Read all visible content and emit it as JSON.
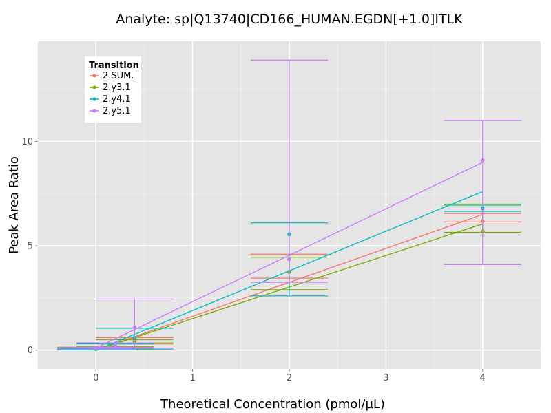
{
  "chart_data": {
    "type": "scatter",
    "title": "Analyte: sp|Q13740|CD166_HUMAN.EGDN[+1.0]ITLK",
    "xlabel": "Theoretical Concentration (pmol/µL)",
    "ylabel": "Peak Area Ratio",
    "xlim": [
      -0.6,
      4.6
    ],
    "ylim": [
      -0.9,
      14.8
    ],
    "x_ticks": [
      0,
      1,
      2,
      3,
      4
    ],
    "x_tick_labels": [
      "0",
      "1",
      "2",
      "3",
      "4"
    ],
    "y_ticks": [
      0,
      5,
      10
    ],
    "y_tick_labels": [
      "0",
      "5",
      "10"
    ],
    "grid": true,
    "legend": {
      "title": "Transition",
      "position": "top-left"
    },
    "series": [
      {
        "name": "2.SUM.",
        "color": "#F8766D",
        "points": [
          {
            "x": 0,
            "y": 0.05,
            "ymin": 0.02,
            "ymax": 0.1
          },
          {
            "x": 0.2,
            "y": 0.1,
            "ymin": 0.05,
            "ymax": 0.15
          },
          {
            "x": 0.4,
            "y": 0.45,
            "ymin": 0.3,
            "ymax": 0.6
          },
          {
            "x": 2,
            "y": 3.75,
            "ymin": 3.45,
            "ymax": 4.6
          },
          {
            "x": 4,
            "y": 6.2,
            "ymin": 6.15,
            "ymax": 6.55
          }
        ],
        "fit": {
          "x": [
            0,
            4
          ],
          "y": [
            0.0,
            6.5
          ]
        }
      },
      {
        "name": "2.y3.1",
        "color": "#7CAE00",
        "points": [
          {
            "x": 0,
            "y": 0.08,
            "ymin": 0.04,
            "ymax": 0.12
          },
          {
            "x": 0.2,
            "y": 0.12,
            "ymin": 0.08,
            "ymax": 0.18
          },
          {
            "x": 0.4,
            "y": 0.4,
            "ymin": 0.35,
            "ymax": 0.5
          },
          {
            "x": 2,
            "y": 3.75,
            "ymin": 2.9,
            "ymax": 4.45
          },
          {
            "x": 4,
            "y": 5.7,
            "ymin": 5.65,
            "ymax": 7.0
          }
        ],
        "fit": {
          "x": [
            0,
            4
          ],
          "y": [
            0.0,
            6.05
          ]
        }
      },
      {
        "name": "2.y4.1",
        "color": "#00BFC4",
        "points": [
          {
            "x": 0,
            "y": 0.05,
            "ymin": 0.02,
            "ymax": 0.08
          },
          {
            "x": 0.2,
            "y": 0.2,
            "ymin": 0.1,
            "ymax": 0.3
          },
          {
            "x": 0.4,
            "y": 0.6,
            "ymin": 0.05,
            "ymax": 1.05
          },
          {
            "x": 2,
            "y": 5.55,
            "ymin": 2.6,
            "ymax": 6.1
          },
          {
            "x": 4,
            "y": 6.8,
            "ymin": 6.65,
            "ymax": 6.95
          }
        ],
        "fit": {
          "x": [
            0,
            4
          ],
          "y": [
            0.0,
            7.6
          ]
        }
      },
      {
        "name": "2.y5.1",
        "color": "#C77CFF",
        "points": [
          {
            "x": 0,
            "y": 0.1,
            "ymin": 0.05,
            "ymax": 0.15
          },
          {
            "x": 0.2,
            "y": 0.25,
            "ymin": 0.12,
            "ymax": 0.35
          },
          {
            "x": 0.4,
            "y": 1.1,
            "ymin": 0.1,
            "ymax": 2.45
          },
          {
            "x": 2,
            "y": 4.35,
            "ymin": 3.25,
            "ymax": 13.9
          },
          {
            "x": 4,
            "y": 9.1,
            "ymin": 4.1,
            "ymax": 11.0
          }
        ],
        "fit": {
          "x": [
            0,
            4
          ],
          "y": [
            0.1,
            9.0
          ]
        }
      }
    ]
  }
}
